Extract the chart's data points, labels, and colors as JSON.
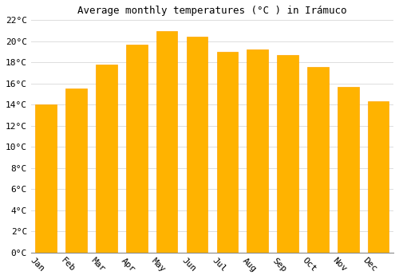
{
  "title": "Average monthly temperatures (°C ) in Irámuco",
  "months": [
    "Jan",
    "Feb",
    "Mar",
    "Apr",
    "May",
    "Jun",
    "Jul",
    "Aug",
    "Sep",
    "Oct",
    "Nov",
    "Dec"
  ],
  "values": [
    14.0,
    15.5,
    17.8,
    19.7,
    21.0,
    20.4,
    19.0,
    19.2,
    18.7,
    17.6,
    15.7,
    14.3
  ],
  "bar_color_left": "#FFD966",
  "bar_color_right": "#FFA500",
  "ylim": [
    0,
    22
  ],
  "ytick_step": 2,
  "background_color": "#FFFFFF",
  "grid_color": "#DDDDDD",
  "title_fontsize": 9,
  "tick_fontsize": 8,
  "xlabel_rotation": -45
}
